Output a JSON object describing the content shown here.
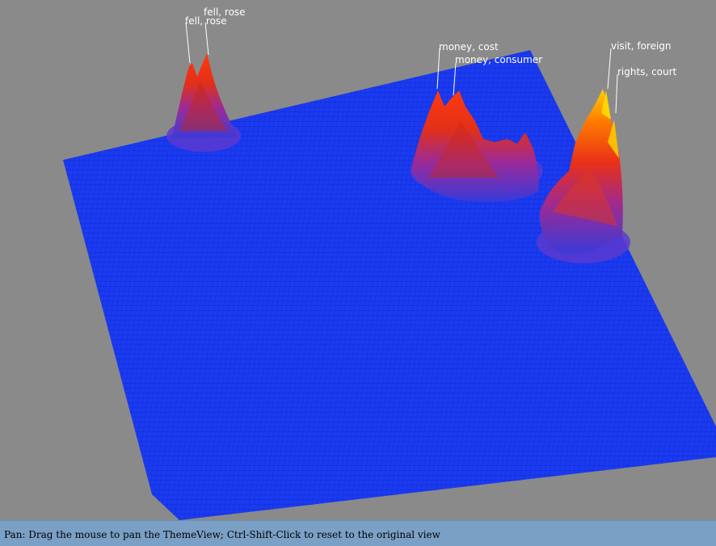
{
  "app": {
    "view_name": "ThemeView"
  },
  "colors": {
    "background": "#8a8a8a",
    "terrain_base": "#1b3bf0",
    "grid_line": "#0b23c8",
    "peak_mid": "#e23018",
    "peak_high": "#ff6a00",
    "peak_top": "#ffcc00",
    "status_bar": "#7ba0c6"
  },
  "peaks": [
    {
      "id": "peak-fell-rose-1",
      "label": "fell, rose"
    },
    {
      "id": "peak-fell-rose-2",
      "label": "fell, rose"
    },
    {
      "id": "peak-money-cost",
      "label": "money, cost"
    },
    {
      "id": "peak-money-consumer",
      "label": "money, consumer"
    },
    {
      "id": "peak-visit-foreign",
      "label": "visit, foreign"
    },
    {
      "id": "peak-rights-court",
      "label": "rights, court"
    }
  ],
  "status": {
    "mode": "Pan:",
    "message": " Drag the mouse to pan the ThemeView; Ctrl-Shift-Click to reset to the original view"
  }
}
